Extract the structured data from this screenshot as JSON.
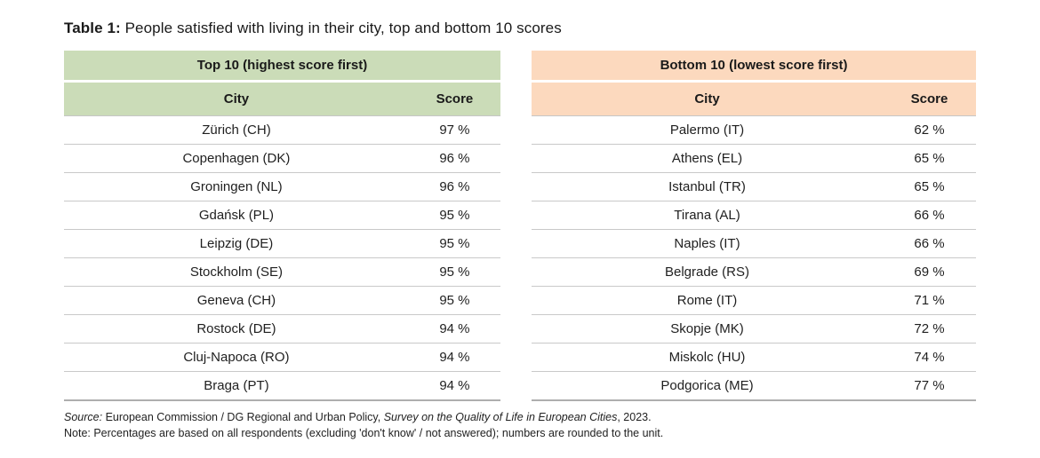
{
  "page": {
    "title_label": "Table 1:",
    "title_text": " People satisfied with living in their city, top and bottom 10 scores"
  },
  "tables": {
    "top": {
      "header": "Top 10 (highest score first)",
      "col_city": "City",
      "col_score": "Score",
      "accent_color": "#cbdcb8",
      "rows": [
        {
          "city": "Zürich (CH)",
          "score": "97 %"
        },
        {
          "city": "Copenhagen (DK)",
          "score": "96 %"
        },
        {
          "city": "Groningen (NL)",
          "score": "96 %"
        },
        {
          "city": "Gdańsk (PL)",
          "score": "95 %"
        },
        {
          "city": "Leipzig (DE)",
          "score": "95 %"
        },
        {
          "city": "Stockholm (SE)",
          "score": "95 %"
        },
        {
          "city": "Geneva (CH)",
          "score": "95 %"
        },
        {
          "city": "Rostock (DE)",
          "score": "94 %"
        },
        {
          "city": "Cluj-Napoca (RO)",
          "score": "94 %"
        },
        {
          "city": "Braga (PT)",
          "score": "94 %"
        }
      ]
    },
    "bottom": {
      "header": "Bottom 10 (lowest score first)",
      "col_city": "City",
      "col_score": "Score",
      "accent_color": "#fcd9be",
      "rows": [
        {
          "city": "Palermo (IT)",
          "score": "62 %"
        },
        {
          "city": "Athens (EL)",
          "score": "65 %"
        },
        {
          "city": "Istanbul (TR)",
          "score": "65 %"
        },
        {
          "city": "Tirana (AL)",
          "score": "66 %"
        },
        {
          "city": "Naples (IT)",
          "score": "66 %"
        },
        {
          "city": "Belgrade (RS)",
          "score": "69 %"
        },
        {
          "city": "Rome (IT)",
          "score": "71 %"
        },
        {
          "city": "Skopje (MK)",
          "score": "72 %"
        },
        {
          "city": "Miskolc (HU)",
          "score": "74 %"
        },
        {
          "city": "Podgorica (ME)",
          "score": "77 %"
        }
      ]
    }
  },
  "footer": {
    "source_label": "Source:",
    "source_text": " European Commission / DG Regional and Urban Policy, ",
    "source_italic": "Survey on the Quality of Life in European Cities",
    "source_end": ", 2023.",
    "note": "Note: Percentages are based on all respondents (excluding 'don't know' / not answered); numbers are rounded to the unit."
  }
}
